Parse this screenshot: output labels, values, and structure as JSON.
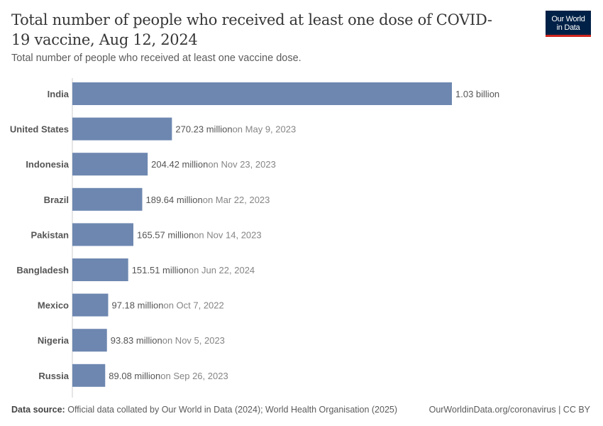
{
  "title": "Total number of people who received at least one dose of COVID-19 vaccine, Aug 12, 2024",
  "subtitle": "Total number of people who received at least one vaccine dose.",
  "logo": {
    "line1": "Our World",
    "line2": "in Data",
    "bg": "#002147",
    "accent": "#ce261e"
  },
  "footer": {
    "source_label": "Data source:",
    "source_text": "Official data collated by Our World in Data (2024); World Health Organisation (2025)",
    "right": "OurWorldinData.org/coronavirus | CC BY"
  },
  "chart_data": {
    "type": "bar",
    "orientation": "horizontal",
    "bar_color": "#6d87b0",
    "categories": [
      "India",
      "United States",
      "Indonesia",
      "Brazil",
      "Pakistan",
      "Bangladesh",
      "Mexico",
      "Nigeria",
      "Russia"
    ],
    "values": [
      1030000000,
      270230000,
      204420000,
      189640000,
      165570000,
      151510000,
      97180000,
      93830000,
      89080000
    ],
    "value_labels": [
      "1.03 billion",
      "270.23 million",
      "204.42 million",
      "189.64 million",
      "165.57 million",
      "151.51 million",
      "97.18 million",
      "93.83 million",
      "89.08 million"
    ],
    "date_notes": [
      "",
      "on May 9, 2023",
      "on Nov 23, 2023",
      "on Mar 22, 2023",
      "on Nov 14, 2023",
      "on Jun 22, 2024",
      "on Oct 7, 2022",
      "on Nov 5, 2023",
      "on Sep 26, 2023"
    ]
  }
}
